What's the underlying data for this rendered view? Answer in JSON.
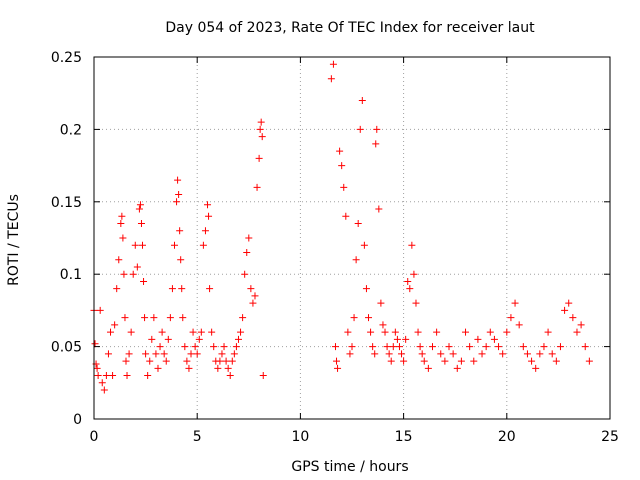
{
  "chart_data": {
    "type": "scatter",
    "title": "Day 054 of 2023, Rate Of TEC Index for receiver laut",
    "xlabel": "GPS time / hours",
    "ylabel": "ROTI / TECUs",
    "xlim": [
      0,
      25
    ],
    "ylim": [
      0,
      0.25
    ],
    "xticks": [
      0,
      5,
      10,
      15,
      20,
      25
    ],
    "xtick_labels": [
      "0",
      "5",
      "10",
      "15",
      "20",
      "25"
    ],
    "yticks": [
      0,
      0.05,
      0.1,
      0.15,
      0.2,
      0.25
    ],
    "ytick_labels": [
      "0",
      "0.05",
      "0.1",
      "0.15",
      "0.2",
      "0.25"
    ],
    "grid": true,
    "marker": "plus",
    "color": "#ff0000",
    "series": [
      {
        "x": [
          0.0,
          0.05,
          0.1,
          0.15,
          0.2,
          0.3,
          0.4,
          0.5,
          0.6,
          0.7,
          0.8,
          0.9,
          1.0,
          1.1,
          1.2,
          1.3,
          1.35,
          1.4,
          1.45,
          1.5,
          1.55,
          1.6,
          1.7,
          1.8,
          1.9,
          2.0,
          2.1,
          2.2,
          2.25,
          2.3,
          2.35,
          2.4,
          2.45,
          2.5,
          2.6,
          2.7,
          2.8,
          2.9,
          3.0,
          3.1,
          3.2,
          3.3,
          3.4,
          3.5,
          3.6,
          3.7,
          3.8,
          3.9,
          4.0,
          4.05,
          4.1,
          4.15,
          4.2,
          4.25,
          4.3,
          4.4,
          4.5,
          4.6,
          4.7,
          4.8,
          4.9,
          5.0,
          5.1,
          5.2,
          5.3,
          5.4,
          5.5,
          5.55,
          5.6,
          5.7,
          5.8,
          5.9,
          6.0,
          6.1,
          6.2,
          6.3,
          6.4,
          6.5,
          6.6,
          6.7,
          6.8,
          6.9,
          7.0,
          7.1,
          7.2,
          7.3,
          7.4,
          7.5,
          7.6,
          7.7,
          7.8,
          7.9,
          8.0,
          8.05,
          8.1,
          8.15,
          8.2
        ],
        "y": [
          0.075,
          0.052,
          0.038,
          0.035,
          0.03,
          0.075,
          0.025,
          0.02,
          0.03,
          0.045,
          0.06,
          0.03,
          0.065,
          0.09,
          0.11,
          0.135,
          0.14,
          0.125,
          0.1,
          0.07,
          0.04,
          0.03,
          0.045,
          0.06,
          0.1,
          0.12,
          0.105,
          0.145,
          0.148,
          0.135,
          0.12,
          0.095,
          0.07,
          0.045,
          0.03,
          0.04,
          0.055,
          0.07,
          0.045,
          0.035,
          0.05,
          0.06,
          0.045,
          0.04,
          0.055,
          0.07,
          0.09,
          0.12,
          0.15,
          0.165,
          0.155,
          0.13,
          0.11,
          0.09,
          0.07,
          0.05,
          0.04,
          0.035,
          0.045,
          0.06,
          0.05,
          0.045,
          0.055,
          0.06,
          0.12,
          0.13,
          0.148,
          0.14,
          0.09,
          0.06,
          0.05,
          0.04,
          0.035,
          0.04,
          0.045,
          0.05,
          0.04,
          0.035,
          0.03,
          0.04,
          0.045,
          0.05,
          0.055,
          0.06,
          0.07,
          0.1,
          0.115,
          0.125,
          0.09,
          0.08,
          0.085,
          0.16,
          0.18,
          0.2,
          0.205,
          0.195,
          0.03
        ]
      },
      {
        "x": [
          11.5,
          11.6,
          11.7,
          11.75,
          11.8,
          11.9,
          12.0,
          12.1,
          12.2,
          12.3,
          12.4,
          12.5,
          12.6,
          12.7,
          12.8,
          12.9,
          13.0,
          13.1,
          13.2,
          13.3,
          13.4,
          13.5,
          13.6,
          13.65,
          13.7,
          13.8,
          13.9,
          14.0,
          14.1,
          14.2,
          14.3,
          14.4,
          14.5,
          14.6,
          14.7,
          14.8,
          14.9,
          15.0,
          15.1,
          15.2,
          15.3,
          15.4,
          15.5,
          15.6,
          15.7,
          15.8,
          15.9,
          16.0,
          16.2,
          16.4,
          16.6,
          16.8,
          17.0,
          17.2,
          17.4,
          17.6,
          17.8,
          18.0,
          18.2,
          18.4,
          18.6,
          18.8,
          19.0,
          19.2,
          19.4,
          19.6,
          19.8,
          20.0,
          20.2,
          20.4,
          20.6,
          20.8,
          21.0,
          21.2,
          21.4,
          21.6,
          21.8,
          22.0,
          22.2,
          22.4,
          22.6,
          22.8,
          23.0,
          23.2,
          23.4,
          23.6,
          23.8,
          24.0
        ],
        "y": [
          0.235,
          0.245,
          0.05,
          0.04,
          0.035,
          0.185,
          0.175,
          0.16,
          0.14,
          0.06,
          0.045,
          0.05,
          0.07,
          0.11,
          0.135,
          0.2,
          0.22,
          0.12,
          0.09,
          0.07,
          0.06,
          0.05,
          0.045,
          0.19,
          0.2,
          0.145,
          0.08,
          0.065,
          0.06,
          0.05,
          0.045,
          0.04,
          0.05,
          0.06,
          0.055,
          0.05,
          0.045,
          0.04,
          0.055,
          0.095,
          0.09,
          0.12,
          0.1,
          0.08,
          0.06,
          0.05,
          0.045,
          0.04,
          0.035,
          0.05,
          0.06,
          0.045,
          0.04,
          0.05,
          0.045,
          0.035,
          0.04,
          0.06,
          0.05,
          0.04,
          0.055,
          0.045,
          0.05,
          0.06,
          0.055,
          0.05,
          0.045,
          0.06,
          0.07,
          0.08,
          0.065,
          0.05,
          0.045,
          0.04,
          0.035,
          0.045,
          0.05,
          0.06,
          0.045,
          0.04,
          0.05,
          0.075,
          0.08,
          0.07,
          0.06,
          0.065,
          0.05,
          0.04
        ]
      }
    ]
  }
}
